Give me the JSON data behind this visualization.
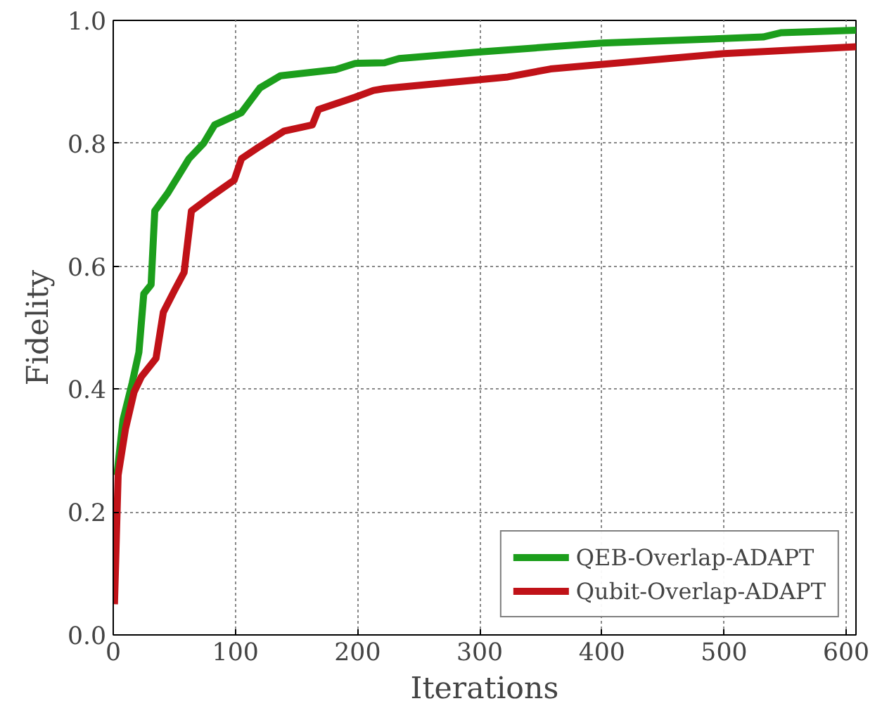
{
  "chart_data": {
    "type": "line",
    "xlabel": "Iterations",
    "ylabel": "Fidelity",
    "xlim": [
      0,
      608
    ],
    "ylim": [
      0,
      1
    ],
    "xticks": [
      0,
      100,
      200,
      300,
      400,
      500,
      600
    ],
    "yticks": [
      {
        "value": 0,
        "label": "0.0"
      },
      0.2,
      0.4,
      0.6,
      0.8,
      {
        "value": 1,
        "label": "1.0"
      }
    ],
    "grid": true,
    "legend": "bottom right",
    "line_style": "solid",
    "series": [
      {
        "name": "QEB-Overlap-ADAPT",
        "color": "#1c9e1c",
        "x": [
          3,
          8,
          15.5,
          21,
          25,
          31,
          34,
          45,
          62,
          74,
          83,
          105,
          120,
          137,
          182,
          198,
          222,
          234,
          295,
          400,
          532,
          547,
          608
        ],
        "values": [
          0.26,
          0.35,
          0.41,
          0.46,
          0.555,
          0.57,
          0.69,
          0.72,
          0.775,
          0.8,
          0.83,
          0.85,
          0.89,
          0.91,
          0.92,
          0.93,
          0.931,
          0.938,
          0.948,
          0.963,
          0.973,
          0.98,
          0.984
        ]
      },
      {
        "name": "Qubit-Overlap-ADAPT",
        "color": "#c01218",
        "x": [
          1,
          4,
          10,
          17,
          23,
          35,
          41,
          50,
          58,
          64,
          81,
          99,
          105,
          120,
          140,
          163,
          168,
          198,
          213,
          222,
          323,
          358,
          500,
          608
        ],
        "values": [
          0.05,
          0.26,
          0.335,
          0.395,
          0.42,
          0.45,
          0.525,
          0.56,
          0.59,
          0.69,
          0.715,
          0.74,
          0.775,
          0.795,
          0.82,
          0.83,
          0.855,
          0.875,
          0.886,
          0.889,
          0.908,
          0.921,
          0.946,
          0.957
        ]
      }
    ]
  }
}
